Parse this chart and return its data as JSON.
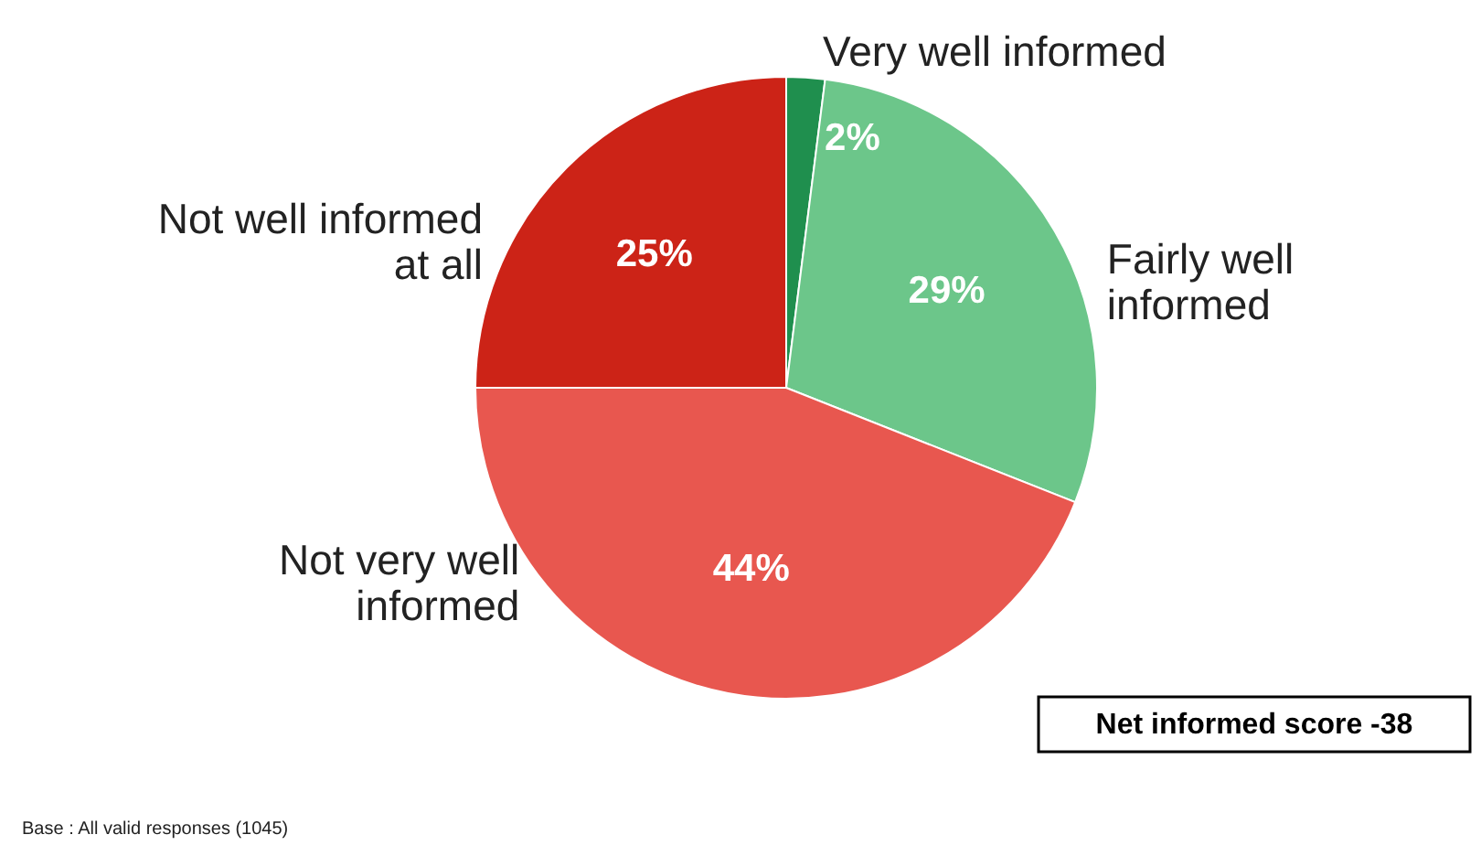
{
  "chart_data": {
    "type": "pie",
    "categories": [
      "Very well informed",
      "Fairly well informed",
      "Not very well informed",
      "Not well informed at all"
    ],
    "values": [
      2,
      29,
      44,
      25
    ],
    "colors": [
      "#1f8f4e",
      "#6cc68a",
      "#e8574f",
      "#cc2317"
    ],
    "value_labels": [
      "2%",
      "29%",
      "44%",
      "25%"
    ],
    "legend": false,
    "annotations": [
      "Net informed score -38",
      "Base : All valid responses (1045)"
    ]
  }
}
